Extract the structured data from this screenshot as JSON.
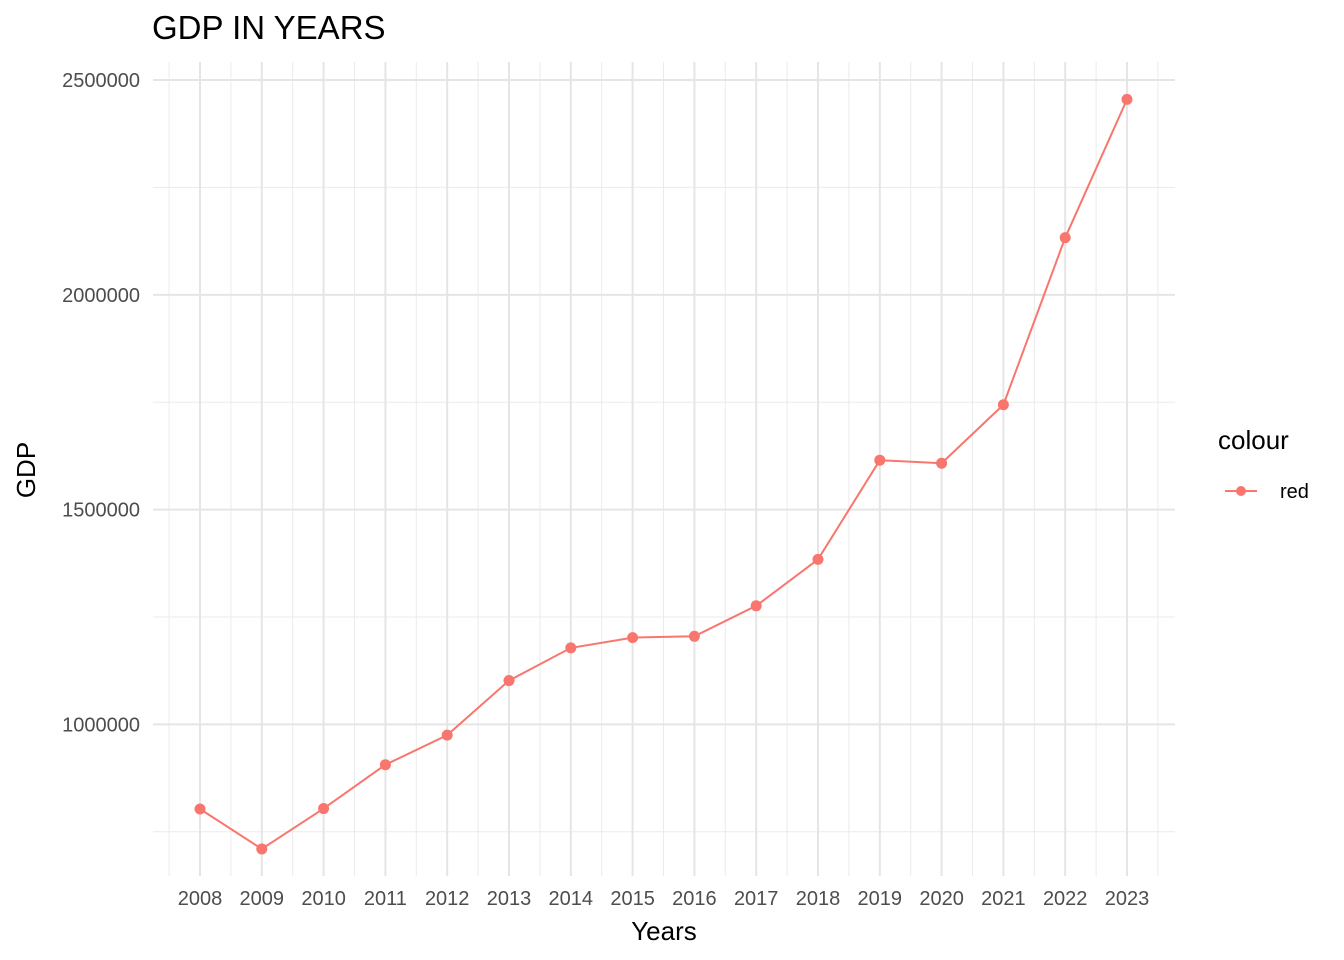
{
  "chart_data": {
    "type": "line",
    "title": "GDP IN YEARS",
    "xlabel": "Years",
    "ylabel": "GDP",
    "categories": [
      "2008",
      "2009",
      "2010",
      "2011",
      "2012",
      "2013",
      "2014",
      "2015",
      "2016",
      "2017",
      "2018",
      "2019",
      "2020",
      "2021",
      "2022",
      "2023"
    ],
    "series": [
      {
        "name": "red",
        "color": "#F8766D",
        "values": [
          803000,
          710000,
          804000,
          906000,
          975000,
          1102000,
          1178000,
          1202000,
          1205000,
          1276000,
          1384000,
          1615000,
          1608000,
          1744000,
          2133000,
          2455000
        ]
      }
    ],
    "y_ticks": [
      1000000,
      1500000,
      2000000,
      2500000
    ],
    "y_tick_labels": [
      "1000000",
      "1500000",
      "2000000",
      "2500000"
    ],
    "ylim": [
      647000,
      2542000
    ],
    "grid": true,
    "legend": {
      "title": "colour",
      "position": "right"
    }
  }
}
